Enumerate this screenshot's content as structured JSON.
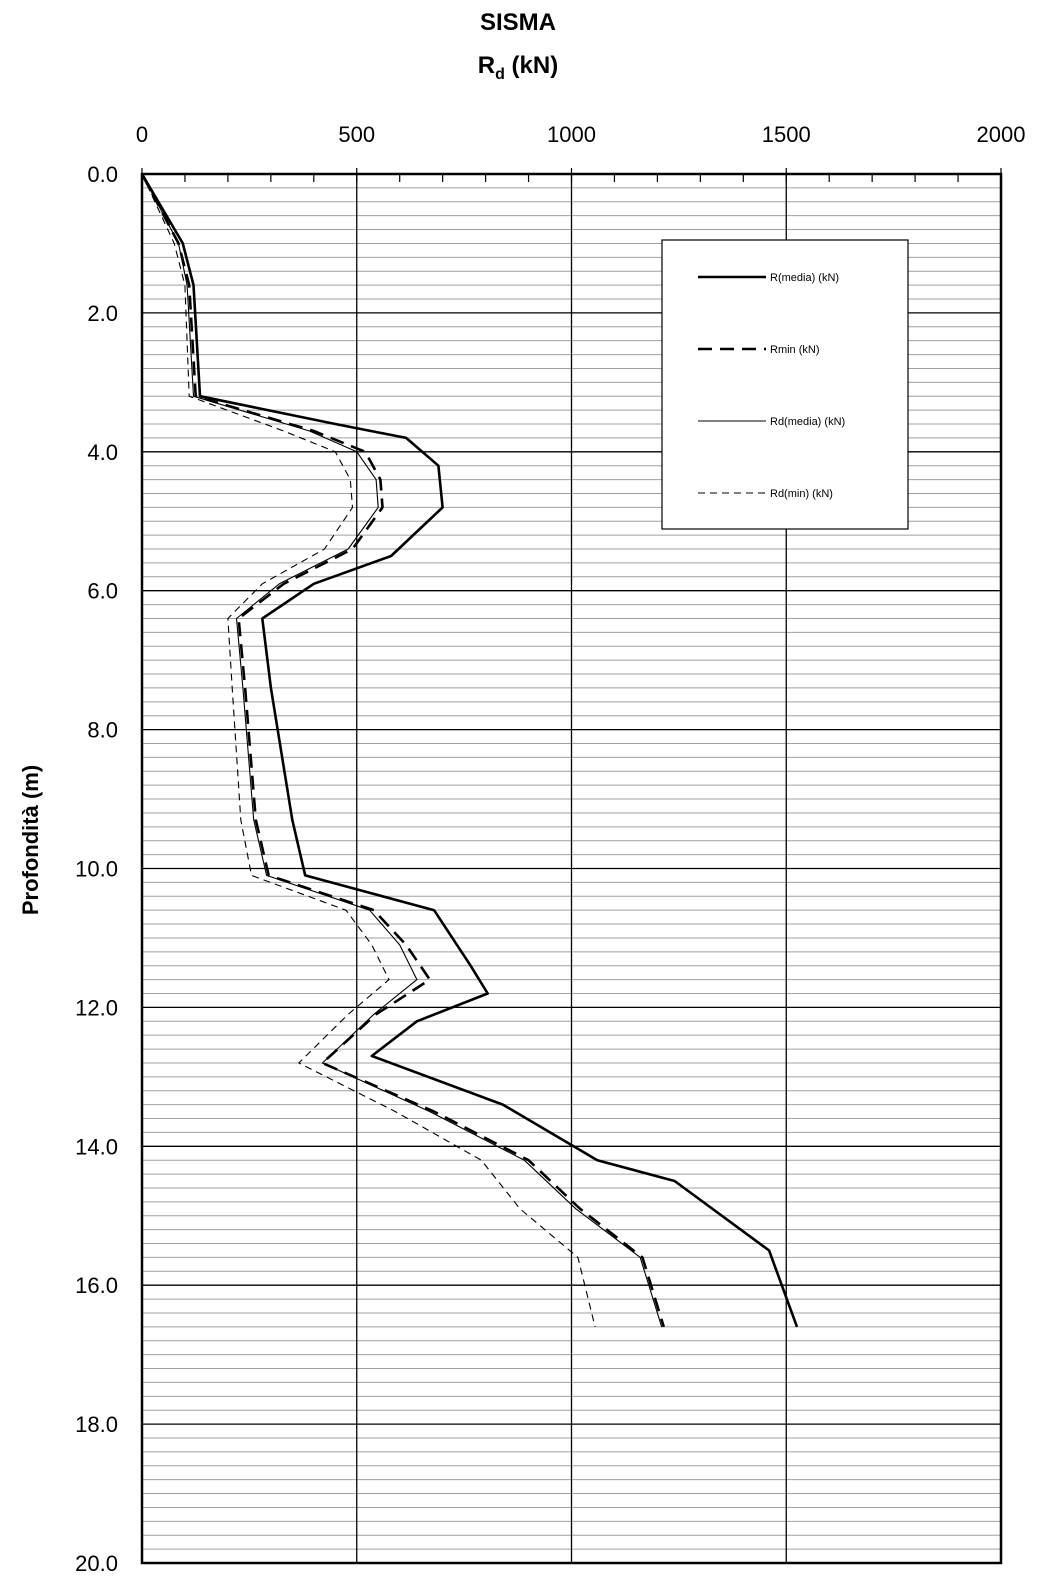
{
  "chart_data": {
    "type": "line",
    "title": "SISMA",
    "subtitle_main": "R",
    "subtitle_sub": "d",
    "subtitle_unit": " (kN)",
    "ylabel": "Profondità (m)",
    "xlim": [
      0,
      2000
    ],
    "ylim": [
      0,
      20
    ],
    "y_inverted": true,
    "x_axis_position": "top",
    "x_ticks": [
      0,
      500,
      1000,
      1500,
      2000
    ],
    "x_tick_labels": [
      "0",
      "500",
      "1000",
      "1500",
      "2000"
    ],
    "y_ticks": [
      0,
      2,
      4,
      6,
      8,
      10,
      12,
      14,
      16,
      18,
      20
    ],
    "y_tick_labels": [
      "0.0",
      "2.0",
      "4.0",
      "6.0",
      "8.0",
      "10.0",
      "12.0",
      "14.0",
      "16.0",
      "18.0",
      "20.0"
    ],
    "y_minor_step": 0.2,
    "x_minor_step": 100,
    "grid": true,
    "legend_position": "top-right",
    "series": [
      {
        "name": "R(media) (kN)",
        "style": "solid-thick",
        "points": [
          [
            0,
            0
          ],
          [
            95,
            1.0
          ],
          [
            120,
            1.6
          ],
          [
            135,
            3.2
          ],
          [
            450,
            3.6
          ],
          [
            615,
            3.8
          ],
          [
            690,
            4.2
          ],
          [
            700,
            4.8
          ],
          [
            580,
            5.5
          ],
          [
            400,
            5.9
          ],
          [
            280,
            6.4
          ],
          [
            300,
            7.4
          ],
          [
            350,
            9.3
          ],
          [
            380,
            10.1
          ],
          [
            680,
            10.6
          ],
          [
            765,
            11.4
          ],
          [
            805,
            11.8
          ],
          [
            640,
            12.2
          ],
          [
            535,
            12.7
          ],
          [
            840,
            13.4
          ],
          [
            1060,
            14.2
          ],
          [
            1240,
            14.5
          ],
          [
            1460,
            15.5
          ],
          [
            1525,
            16.6
          ]
        ]
      },
      {
        "name": "Rmin (kN)",
        "style": "dashed-thick",
        "points": [
          [
            0,
            0
          ],
          [
            85,
            1.0
          ],
          [
            110,
            1.6
          ],
          [
            125,
            3.2
          ],
          [
            400,
            3.7
          ],
          [
            520,
            4.0
          ],
          [
            555,
            4.4
          ],
          [
            560,
            4.8
          ],
          [
            490,
            5.4
          ],
          [
            330,
            5.9
          ],
          [
            225,
            6.4
          ],
          [
            240,
            7.4
          ],
          [
            265,
            9.3
          ],
          [
            295,
            10.1
          ],
          [
            540,
            10.6
          ],
          [
            615,
            11.1
          ],
          [
            670,
            11.6
          ],
          [
            545,
            12.1
          ],
          [
            420,
            12.8
          ],
          [
            680,
            13.5
          ],
          [
            900,
            14.2
          ],
          [
            1020,
            14.9
          ],
          [
            1165,
            15.6
          ],
          [
            1215,
            16.6
          ]
        ]
      },
      {
        "name": "Rd(media) (kN)",
        "style": "solid-thin",
        "points": [
          [
            0,
            0
          ],
          [
            85,
            1.0
          ],
          [
            105,
            1.6
          ],
          [
            120,
            3.2
          ],
          [
            390,
            3.7
          ],
          [
            500,
            4.0
          ],
          [
            545,
            4.4
          ],
          [
            550,
            4.8
          ],
          [
            480,
            5.4
          ],
          [
            320,
            5.9
          ],
          [
            220,
            6.4
          ],
          [
            235,
            7.4
          ],
          [
            260,
            9.3
          ],
          [
            290,
            10.1
          ],
          [
            530,
            10.6
          ],
          [
            600,
            11.1
          ],
          [
            640,
            11.6
          ],
          [
            540,
            12.1
          ],
          [
            420,
            12.8
          ],
          [
            670,
            13.5
          ],
          [
            890,
            14.2
          ],
          [
            1010,
            14.9
          ],
          [
            1160,
            15.6
          ],
          [
            1210,
            16.6
          ]
        ]
      },
      {
        "name": "Rd(min) (kN)",
        "style": "dashed-thin",
        "points": [
          [
            0,
            0
          ],
          [
            75,
            1.0
          ],
          [
            100,
            1.6
          ],
          [
            110,
            3.2
          ],
          [
            330,
            3.7
          ],
          [
            450,
            4.0
          ],
          [
            485,
            4.4
          ],
          [
            490,
            4.8
          ],
          [
            425,
            5.4
          ],
          [
            280,
            5.9
          ],
          [
            200,
            6.4
          ],
          [
            210,
            7.4
          ],
          [
            230,
            9.3
          ],
          [
            255,
            10.1
          ],
          [
            475,
            10.6
          ],
          [
            535,
            11.1
          ],
          [
            575,
            11.6
          ],
          [
            480,
            12.1
          ],
          [
            365,
            12.8
          ],
          [
            590,
            13.5
          ],
          [
            790,
            14.2
          ],
          [
            880,
            14.9
          ],
          [
            1015,
            15.6
          ],
          [
            1055,
            16.6
          ]
        ]
      }
    ]
  }
}
